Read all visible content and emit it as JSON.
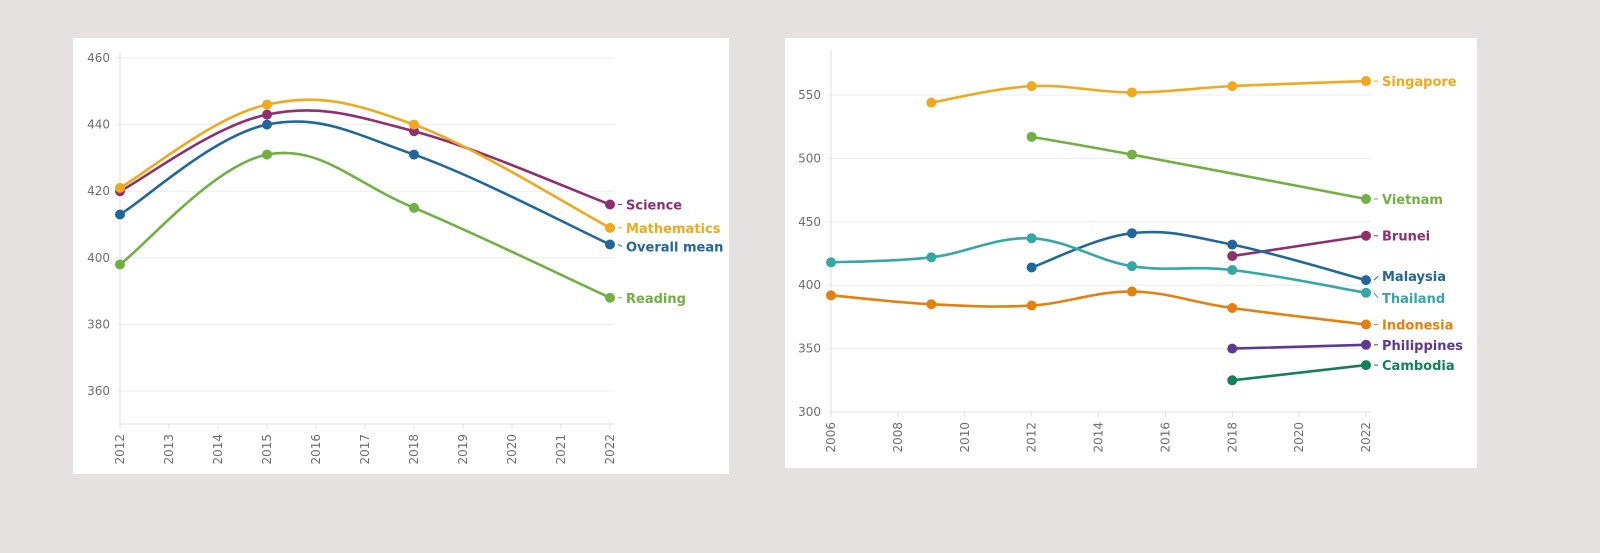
{
  "chart_data": [
    {
      "type": "line",
      "title": "",
      "xlabel": "",
      "ylabel": "",
      "x_ticks": [
        "2012",
        "2013",
        "2014",
        "2015",
        "2016",
        "2017",
        "2018",
        "2019",
        "2020",
        "2021",
        "2022"
      ],
      "y_ticks": [
        "460",
        "440",
        "420",
        "400",
        "380",
        "360"
      ],
      "xlim": [
        2012,
        2022
      ],
      "ylim": [
        350,
        462
      ],
      "grid": true,
      "legend": "inline-right",
      "series": [
        {
          "name": "Science",
          "color": "#8e2f6e",
          "x": [
            2012,
            2015,
            2018,
            2022
          ],
          "values": [
            420,
            443,
            438,
            416
          ]
        },
        {
          "name": "Mathematics",
          "color": "#f0a91c",
          "x": [
            2012,
            2015,
            2018,
            2022
          ],
          "values": [
            421,
            446,
            440,
            409
          ]
        },
        {
          "name": "Overall mean",
          "color": "#21679b",
          "x": [
            2012,
            2015,
            2018,
            2022
          ],
          "values": [
            413,
            440,
            431,
            404
          ]
        },
        {
          "name": "Reading",
          "color": "#72b043",
          "x": [
            2012,
            2015,
            2018,
            2022
          ],
          "values": [
            398,
            431,
            415,
            388
          ]
        }
      ]
    },
    {
      "type": "line",
      "title": "",
      "xlabel": "",
      "ylabel": "",
      "x_ticks": [
        "2006",
        "2008",
        "2010",
        "2012",
        "2014",
        "2016",
        "2018",
        "2020",
        "2022"
      ],
      "y_ticks": [
        "550",
        "500",
        "450",
        "400",
        "350",
        "300"
      ],
      "xlim": [
        2006,
        2022
      ],
      "ylim": [
        300,
        580
      ],
      "grid": true,
      "legend": "inline-right",
      "series": [
        {
          "name": "Singapore",
          "color": "#f0a91c",
          "x": [
            2009,
            2012,
            2015,
            2018,
            2022
          ],
          "values": [
            544,
            557,
            552,
            557,
            561
          ]
        },
        {
          "name": "Vietnam",
          "color": "#72b043",
          "x": [
            2012,
            2015,
            2022
          ],
          "values": [
            517,
            503,
            468
          ]
        },
        {
          "name": "Brunei",
          "color": "#8e2f6e",
          "x": [
            2018,
            2022
          ],
          "values": [
            423,
            439
          ]
        },
        {
          "name": "Malaysia",
          "color": "#21679b",
          "x": [
            2012,
            2015,
            2018,
            2022
          ],
          "values": [
            414,
            441,
            432,
            404
          ]
        },
        {
          "name": "Thailand",
          "color": "#35a7a7",
          "x": [
            2006,
            2009,
            2012,
            2015,
            2018,
            2022
          ],
          "values": [
            418,
            422,
            437,
            415,
            412,
            394
          ]
        },
        {
          "name": "Indonesia",
          "color": "#e5800f",
          "x": [
            2006,
            2009,
            2012,
            2015,
            2018,
            2022
          ],
          "values": [
            392,
            385,
            384,
            395,
            382,
            369
          ]
        },
        {
          "name": "Philippines",
          "color": "#5d3a92",
          "x": [
            2018,
            2022
          ],
          "values": [
            350,
            353
          ]
        },
        {
          "name": "Cambodia",
          "color": "#13805a",
          "x": [
            2018,
            2022
          ],
          "values": [
            325,
            337
          ]
        }
      ]
    }
  ]
}
